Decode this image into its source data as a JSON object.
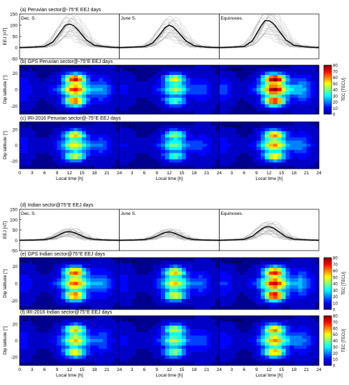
{
  "colormap": [
    "#00008f",
    "#0000ff",
    "#0080ff",
    "#00ffff",
    "#80ff80",
    "#ffff00",
    "#ff8000",
    "#ff0000",
    "#800000"
  ],
  "line_colors": {
    "mean": "#000000",
    "individual": "#a9a9a9"
  },
  "chart_data": [
    {
      "type": "line",
      "panel": "(a)",
      "title": "(a)  Peruvian sector@-75°E    EEJ days",
      "ylabel": "EEJ [nT]",
      "ylim": [
        -50,
        150
      ],
      "yticks": [
        "150",
        "100",
        "50",
        "0",
        "-50"
      ],
      "subpanels": [
        "Dec. S.",
        "June S.",
        "Equinoxes."
      ],
      "series": [
        {
          "subpanel": "Dec. S.",
          "x": [
            0,
            3,
            6,
            8,
            10,
            11,
            12,
            13,
            14,
            16,
            18,
            21,
            24
          ],
          "values": [
            0,
            2,
            5,
            25,
            75,
            100,
            105,
            98,
            80,
            35,
            10,
            3,
            0
          ]
        },
        {
          "subpanel": "June S.",
          "x": [
            0,
            3,
            6,
            8,
            10,
            11,
            12,
            13,
            14,
            16,
            18,
            21,
            24
          ],
          "values": [
            0,
            2,
            4,
            20,
            65,
            90,
            100,
            92,
            72,
            30,
            8,
            2,
            0
          ]
        },
        {
          "subpanel": "Equinoxes.",
          "x": [
            0,
            3,
            6,
            8,
            10,
            11,
            12,
            13,
            14,
            16,
            18,
            21,
            24
          ],
          "values": [
            0,
            2,
            5,
            30,
            95,
            120,
            120,
            108,
            85,
            35,
            10,
            3,
            0
          ]
        }
      ]
    },
    {
      "type": "heatmap",
      "panel": "(b)",
      "title": "(b)  GPS   Peruvian sector@-75°E    EEJ days",
      "ylabel": "Dip latitude [°]",
      "xlim": [
        0,
        24
      ],
      "ylim": [
        -30,
        30
      ],
      "yticks": [
        "20",
        "0",
        "-20"
      ],
      "colorbar": {
        "label": "TEC [TECU]",
        "range": [
          0,
          80
        ],
        "ticks": [
          "80",
          "70",
          "60",
          "50",
          "40",
          "30",
          "20",
          "10",
          "0"
        ]
      },
      "subpanels": [
        "Dec. S.",
        "June S.",
        "Equinoxes."
      ],
      "maxima": [
        [
          70,
          62
        ],
        [
          46,
          34
        ],
        [
          80,
          68
        ]
      ]
    },
    {
      "type": "heatmap",
      "panel": "(c)",
      "title": "(c)  IRI-2016   Peruvian sector@-75°E    EEJ days",
      "ylabel": "Dip latitude [°]",
      "xlabel": "Local time [h]",
      "xticks": [
        "0",
        "3",
        "6",
        "9",
        "12",
        "15",
        "18",
        "21",
        "24"
      ],
      "xlim": [
        0,
        24
      ],
      "ylim": [
        -30,
        30
      ],
      "yticks": [
        "20",
        "0",
        "-20"
      ],
      "subpanels": [
        "Dec. S.",
        "June S.",
        "Equinoxes."
      ],
      "maxima": [
        [
          50,
          46
        ],
        [
          40,
          34
        ],
        [
          58,
          52
        ]
      ]
    },
    {
      "type": "line",
      "panel": "(d)",
      "title": "(d)  Indian sector@75°E    EEJ days",
      "ylabel": "EEJ [nT]",
      "ylim": [
        -50,
        150
      ],
      "yticks": [
        "150",
        "100",
        "50",
        "0",
        "-50"
      ],
      "subpanels": [
        "Dec. S.",
        "June S.",
        "Equinoxes."
      ],
      "series": [
        {
          "subpanel": "Dec. S.",
          "x": [
            0,
            3,
            6,
            8,
            10,
            11,
            12,
            13,
            14,
            16,
            18,
            21,
            24
          ],
          "values": [
            0,
            1,
            3,
            12,
            32,
            40,
            42,
            38,
            30,
            12,
            4,
            1,
            0
          ]
        },
        {
          "subpanel": "June S.",
          "x": [
            0,
            3,
            6,
            8,
            10,
            11,
            12,
            13,
            14,
            16,
            18,
            21,
            24
          ],
          "values": [
            0,
            1,
            3,
            12,
            30,
            38,
            40,
            36,
            28,
            11,
            3,
            1,
            0
          ]
        },
        {
          "subpanel": "Equinoxes.",
          "x": [
            0,
            3,
            6,
            8,
            10,
            11,
            12,
            13,
            14,
            16,
            18,
            21,
            24
          ],
          "values": [
            0,
            2,
            4,
            20,
            52,
            64,
            66,
            60,
            46,
            18,
            5,
            2,
            0
          ]
        }
      ]
    },
    {
      "type": "heatmap",
      "panel": "(e)",
      "title": "(e)  GPS   Indian sector@75°E    EEJ days",
      "ylabel": "Dip latitude [°]",
      "xlim": [
        0,
        24
      ],
      "ylim": [
        -30,
        30
      ],
      "yticks": [
        "20",
        "0",
        "-20"
      ],
      "colorbar": {
        "label": "TEC [TECU]",
        "range": [
          0,
          80
        ],
        "ticks": [
          "80",
          "70",
          "60",
          "50",
          "40",
          "30",
          "20",
          "10",
          "0"
        ]
      },
      "subpanels": [
        "Dec. S.",
        "June S.",
        "Equinoxes."
      ],
      "maxima": [
        [
          62,
          60
        ],
        [
          50,
          48
        ],
        [
          68,
          70
        ]
      ]
    },
    {
      "type": "heatmap",
      "panel": "(f)",
      "title": "(f)  IRI-2016   Indian sector@75°E    EEJ days",
      "ylabel": "Dip latitude [°]",
      "xlabel": "Local time [h]",
      "xticks": [
        "0",
        "3",
        "6",
        "9",
        "12",
        "15",
        "18",
        "21",
        "24"
      ],
      "xlim": [
        0,
        24
      ],
      "ylim": [
        -30,
        30
      ],
      "yticks": [
        "20",
        "0",
        "-20"
      ],
      "colorbar": {
        "label": "TEC [TECU]",
        "range": [
          0,
          80
        ],
        "ticks": [
          "80",
          "70",
          "60",
          "50",
          "40",
          "30",
          "20",
          "10",
          "0"
        ]
      },
      "subpanels": [
        "Dec. S.",
        "June S.",
        "Equinoxes."
      ],
      "maxima": [
        [
          52,
          50
        ],
        [
          44,
          40
        ],
        [
          58,
          55
        ]
      ]
    }
  ]
}
